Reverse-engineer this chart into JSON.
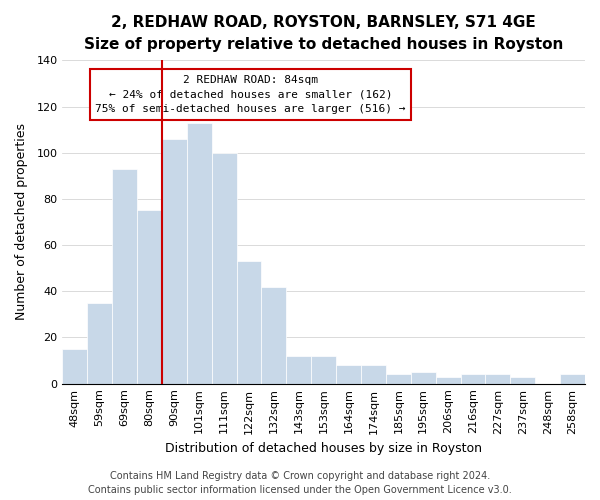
{
  "title": "2, REDHAW ROAD, ROYSTON, BARNSLEY, S71 4GE",
  "subtitle": "Size of property relative to detached houses in Royston",
  "xlabel": "Distribution of detached houses by size in Royston",
  "ylabel": "Number of detached properties",
  "categories": [
    "48sqm",
    "59sqm",
    "69sqm",
    "80sqm",
    "90sqm",
    "101sqm",
    "111sqm",
    "122sqm",
    "132sqm",
    "143sqm",
    "153sqm",
    "164sqm",
    "174sqm",
    "185sqm",
    "195sqm",
    "206sqm",
    "216sqm",
    "227sqm",
    "237sqm",
    "248sqm",
    "258sqm"
  ],
  "values": [
    15,
    35,
    93,
    75,
    106,
    113,
    100,
    53,
    42,
    12,
    12,
    8,
    8,
    4,
    5,
    3,
    4,
    4,
    3,
    0,
    4
  ],
  "bar_color": "#c8d8e8",
  "vline_x": 3.5,
  "vline_color": "#cc0000",
  "annotation_title": "2 REDHAW ROAD: 84sqm",
  "annotation_line1": "← 24% of detached houses are smaller (162)",
  "annotation_line2": "75% of semi-detached houses are larger (516) →",
  "annotation_box_color": "#ffffff",
  "annotation_box_edge": "#cc0000",
  "ylim": [
    0,
    140
  ],
  "yticks": [
    0,
    20,
    40,
    60,
    80,
    100,
    120,
    140
  ],
  "footer1": "Contains HM Land Registry data © Crown copyright and database right 2024.",
  "footer2": "Contains public sector information licensed under the Open Government Licence v3.0.",
  "title_fontsize": 11,
  "subtitle_fontsize": 10,
  "axis_label_fontsize": 9,
  "tick_fontsize": 8,
  "footer_fontsize": 7
}
